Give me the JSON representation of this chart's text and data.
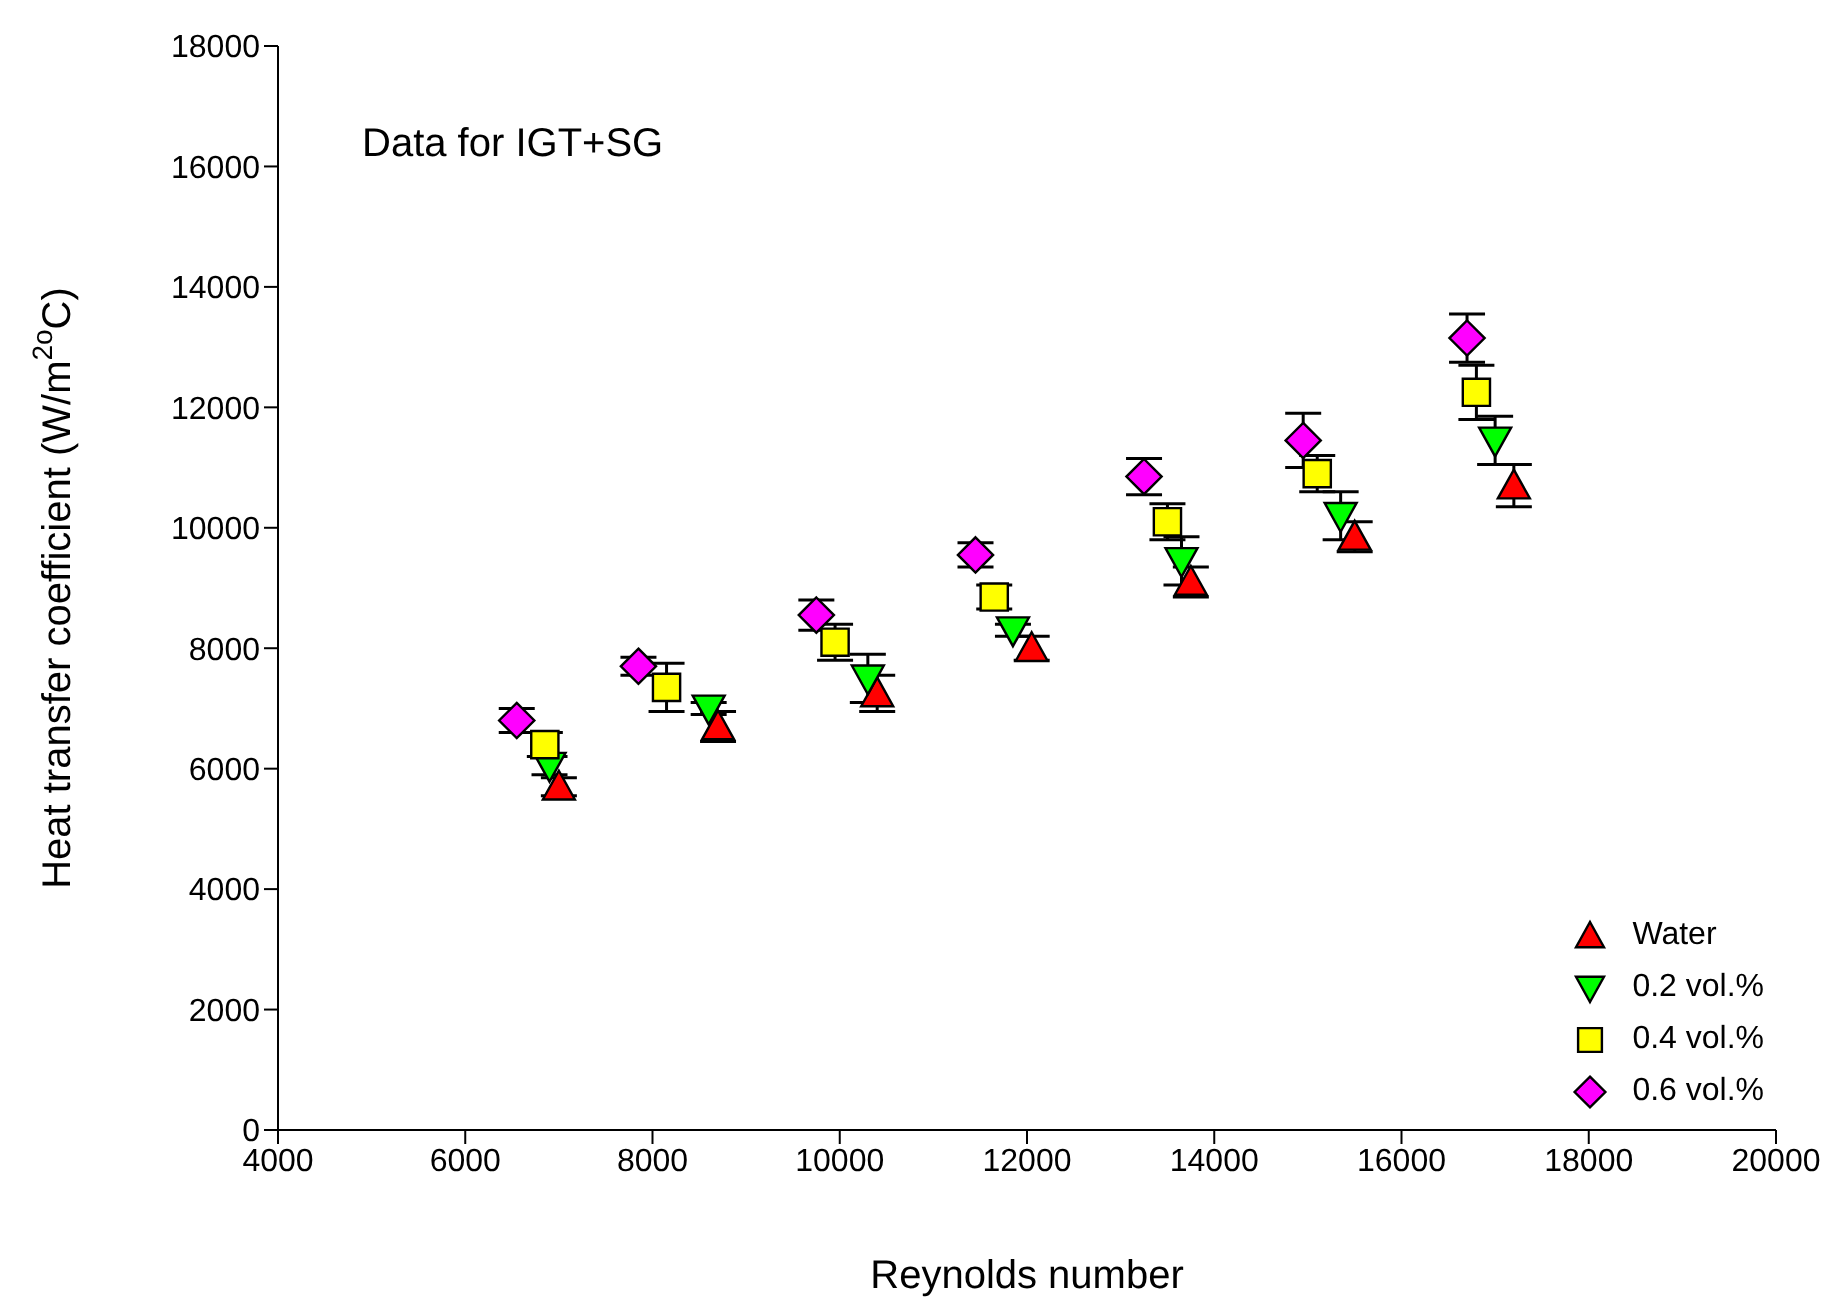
{
  "chart_data": {
    "type": "scatter",
    "xlabel": "Reynolds number",
    "ylabel": "Heat transfer coefficient (W/m$^{2o}$C)",
    "annotations": [
      "Data for IGT+SG"
    ],
    "xlim": [
      4000,
      20000
    ],
    "xticks": [
      4000,
      6000,
      8000,
      10000,
      12000,
      14000,
      16000,
      18000,
      20000
    ],
    "ylim": [
      0,
      18000
    ],
    "yticks": [
      0,
      2000,
      4000,
      6000,
      8000,
      10000,
      12000,
      14000,
      16000,
      18000
    ],
    "legend": "bottom right",
    "series": [
      {
        "name": "Water",
        "color": "#ff0000",
        "marker": "triangle",
        "x": [
          7000,
          8700,
          10400,
          12050,
          13750,
          15500,
          17200
        ],
        "values": [
          5700,
          6700,
          7250,
          8000,
          9100,
          9850,
          10700
        ],
        "errors": [
          150,
          250,
          300,
          200,
          250,
          250,
          350
        ]
      },
      {
        "name": "0.2 vol.%",
        "color": "#00ff00",
        "marker": "triangle-down",
        "x": [
          6900,
          8600,
          10300,
          11850,
          13650,
          15350,
          17000
        ],
        "values": [
          6050,
          7000,
          7500,
          8300,
          9450,
          10200,
          11450
        ],
        "errors": [
          150,
          100,
          400,
          100,
          400,
          400,
          400
        ]
      },
      {
        "name": "0.4 vol.%",
        "color": "#ffff00",
        "marker": "square",
        "x": [
          6850,
          8150,
          9950,
          11650,
          13500,
          15100,
          16800
        ],
        "values": [
          6400,
          7350,
          8100,
          8850,
          10100,
          10900,
          12250
        ],
        "errors": [
          200,
          400,
          300,
          200,
          300,
          300,
          450
        ]
      },
      {
        "name": "0.6 vol.%",
        "color": "#ff00ff",
        "marker": "diamond",
        "x": [
          6550,
          7850,
          9750,
          11450,
          13250,
          14950,
          16700
        ],
        "values": [
          6800,
          7700,
          8550,
          9550,
          10850,
          11450,
          13150
        ],
        "errors": [
          200,
          150,
          250,
          200,
          300,
          450,
          400
        ]
      }
    ]
  }
}
